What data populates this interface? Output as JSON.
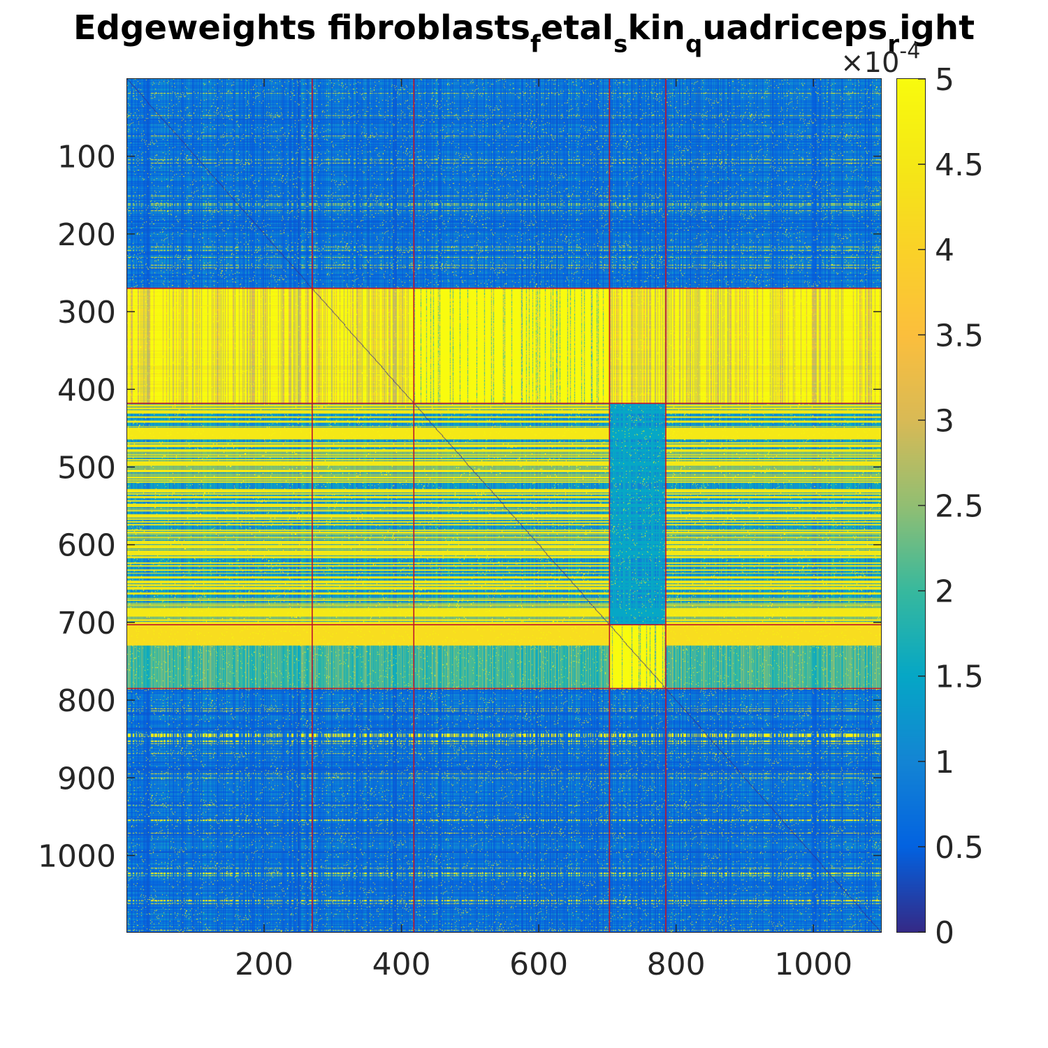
{
  "chart_data": {
    "type": "heatmap",
    "title_parts": [
      {
        "text": "Edgeweights fibroblasts",
        "sub": false
      },
      {
        "text": "f",
        "sub": true
      },
      {
        "text": "etal",
        "sub": false
      },
      {
        "text": "s",
        "sub": true
      },
      {
        "text": "kin",
        "sub": false
      },
      {
        "text": "q",
        "sub": true
      },
      {
        "text": "uadriceps",
        "sub": false
      },
      {
        "text": "r",
        "sub": true
      },
      {
        "text": "ight",
        "sub": false
      }
    ],
    "matrix_size": 1098,
    "xlim": [
      0.5,
      1098.5
    ],
    "ylim": [
      0.5,
      1098.5
    ],
    "x_ticks": [
      200,
      400,
      600,
      800,
      1000
    ],
    "x_tick_labels": [
      "200",
      "400",
      "600",
      "800",
      "1000"
    ],
    "y_ticks": [
      100,
      200,
      300,
      400,
      500,
      600,
      700,
      800,
      900,
      1000
    ],
    "y_tick_labels": [
      "100",
      "200",
      "300",
      "400",
      "500",
      "600",
      "700",
      "800",
      "900",
      "1000"
    ],
    "colormap": "parula",
    "color_limits": [
      0,
      0.0005
    ],
    "colorbar": {
      "ticks": [
        0,
        0.5,
        1,
        1.5,
        2,
        2.5,
        3,
        3.5,
        4,
        4.5,
        5
      ],
      "tick_labels": [
        "0",
        "0.5",
        "1",
        "1.5",
        "2",
        "2.5",
        "3",
        "3.5",
        "4",
        "4.5",
        "5"
      ],
      "multiplier_base": "×10",
      "multiplier_exp": "-4"
    },
    "cluster_boundaries": [
      270,
      418,
      703,
      785
    ],
    "boundary_color": "#c0142a",
    "high_blocks": [
      {
        "rows": [
          270,
          418
        ],
        "cols": [
          418,
          703
        ]
      },
      {
        "rows": [
          703,
          785
        ],
        "cols": [
          703,
          785
        ]
      }
    ],
    "high_row_bands": [
      [
        270,
        418
      ],
      [
        418,
        703
      ],
      [
        703,
        785
      ]
    ]
  }
}
